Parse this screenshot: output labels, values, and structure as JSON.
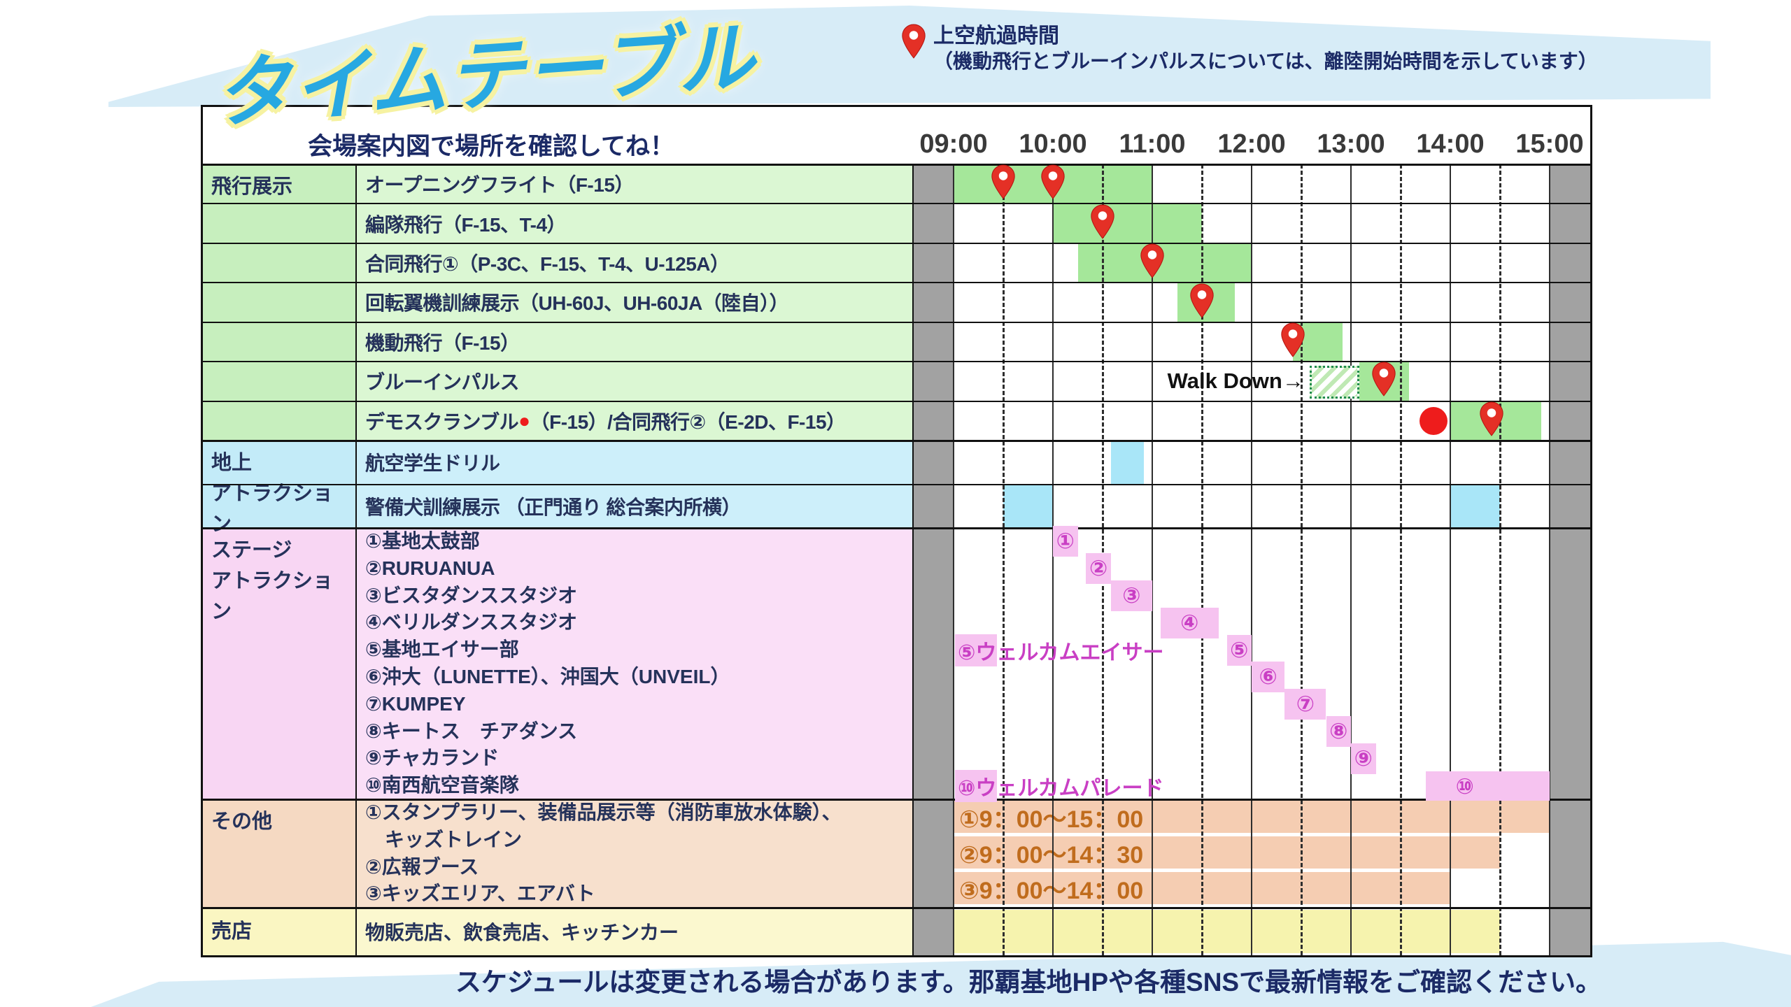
{
  "title": "タイムテーブル",
  "legend": {
    "line1": "上空航過時間",
    "line2": "（機動飛行とブルーインパルスについては、離陸開始時間を示しています）"
  },
  "header": {
    "note": "会場案内図で場所を確認してね！",
    "hours": [
      "09:00",
      "10:00",
      "11:00",
      "12:00",
      "13:00",
      "14:00",
      "15:00"
    ]
  },
  "footer": "スケジュールは変更される場合があります。那覇基地HPや各種SNSで最新情報をご確認ください。",
  "colors": {
    "title_blue": "#27a8e1",
    "title_halo": "#f6f2a2",
    "navy": "#1b2a66",
    "text_dark": "#25325a",
    "band_blue": "#d7ecf7",
    "gray_margin": "#a2a2a2",
    "grid": "#2e2e2e",
    "border_dark": "#111111",
    "hour_label": "#3a3a3a",
    "section_green_cat": "#c7efbe",
    "section_green_cell": "#dbf7d3",
    "bar_green": "#a5e79a",
    "section_blue_cat": "#c3ebf8",
    "section_blue_cell": "#cdeffa",
    "bar_cyan": "#a9e6f8",
    "section_pink_cat": "#f8d6f3",
    "section_pink_cell": "#fadff7",
    "marker_pink": "#f6c3f0",
    "stage_magenta": "#c93fc4",
    "section_peach_cat": "#f5d9c2",
    "section_peach_cell": "#f7e0cd",
    "bar_peach": "#f5cdb2",
    "other_orange": "#c06c1d",
    "section_yellow_cat": "#faf6c2",
    "section_yellow_cell": "#fbf8cf",
    "bar_yellow": "#f6f3ae",
    "pin_red": "#e43026",
    "dot_red": "#ee1c1c",
    "hatch_green": "#bfe9b4",
    "hatch_border": "#1f8a4d",
    "walkdown_text": "#111111"
  },
  "chart_data": {
    "type": "gantt",
    "time_axis": {
      "start": "09:00",
      "end": "15:00",
      "hour_labels": [
        "09:00",
        "10:00",
        "11:00",
        "12:00",
        "13:00",
        "14:00",
        "15:00"
      ],
      "solid_gridlines": "hours",
      "dashed_gridlines": "half-hours"
    },
    "pin_meaning": "上空航過時間（機動飛行・ブルーインパルスは離陸開始時間）",
    "sections": [
      {
        "id": "flight",
        "category": "飛行展示",
        "rows": [
          {
            "label_parts": [
              "オープニングフライト（F-15）"
            ],
            "bars": [
              [
                "09:00",
                "11:00"
              ]
            ],
            "pins": [
              "09:30",
              "10:00"
            ]
          },
          {
            "label_parts": [
              "編隊飛行（F-15、T-4）"
            ],
            "bars": [
              [
                "10:00",
                "11:30"
              ]
            ],
            "pins": [
              "10:30"
            ]
          },
          {
            "label_parts": [
              "合同飛行①（P-3C、F-15、T-4、U-125A）"
            ],
            "bars": [
              [
                "10:15",
                "12:00"
              ]
            ],
            "pins": [
              "11:00"
            ]
          },
          {
            "label_parts": [
              "回転翼機訓練展示（UH-60J、UH-60JA（陸自））"
            ],
            "bars": [
              [
                "11:15",
                "11:50"
              ]
            ],
            "pins": [
              "11:30"
            ]
          },
          {
            "label_parts": [
              "機動飛行（F-15）"
            ],
            "bars": [
              [
                "12:25",
                "12:55"
              ]
            ],
            "pins": [
              "12:25"
            ]
          },
          {
            "label_parts": [
              "ブルーインパルス"
            ],
            "bars": [
              [
                "13:05",
                "13:35"
              ]
            ],
            "pins": [
              "13:20"
            ],
            "hatch_box": [
              "12:35",
              "13:05"
            ],
            "annotation": {
              "text": "Walk Down→",
              "end": "12:35"
            }
          },
          {
            "label_parts": [
              "デモスクランブル",
              "●",
              "（F-15）/合同飛行②（E-2D、F-15）"
            ],
            "bars": [
              [
                "14:00",
                "14:55"
              ]
            ],
            "pins": [
              "14:25"
            ],
            "dot": "13:50"
          }
        ]
      },
      {
        "id": "ground",
        "category": "地上\nアトラクション",
        "rows": [
          {
            "label_parts": [
              "航空学生ドリル"
            ],
            "bars": [
              [
                "10:35",
                "10:55"
              ]
            ],
            "pins": []
          },
          {
            "label_parts": [
              "警備犬訓練展示 （正門通り 総合案内所横）"
            ],
            "bars": [
              [
                "09:30",
                "10:00"
              ],
              [
                "14:00",
                "14:30"
              ]
            ],
            "pins": []
          }
        ]
      },
      {
        "id": "stage",
        "category": "ステージ\nアトラクション",
        "list": [
          "①基地太鼓部",
          "②RURUANUA",
          "③ビスタダンススタジオ",
          "④ベリルダンススタジオ",
          "⑤基地エイサー部",
          "⑥沖大（LUNETTE）、沖国大（UNVEIL）",
          "⑦KUMPEY",
          "⑧キートス　チアダンス",
          "⑨チャカランド",
          "⑩南西航空音楽隊"
        ],
        "markers": [
          {
            "num": "①",
            "start": "10:00",
            "end": "10:15",
            "line": 1
          },
          {
            "num": "②",
            "start": "10:20",
            "end": "10:35",
            "line": 2
          },
          {
            "num": "③",
            "start": "10:35",
            "end": "11:00",
            "line": 3
          },
          {
            "num": "④",
            "start": "11:05",
            "end": "11:40",
            "line": 4
          },
          {
            "num": "⑤",
            "start": "11:45",
            "end": "12:00",
            "line": 5
          },
          {
            "num": "⑥",
            "start": "12:00",
            "end": "12:20",
            "line": 6
          },
          {
            "num": "⑦",
            "start": "12:20",
            "end": "12:45",
            "line": 7
          },
          {
            "num": "⑧",
            "start": "12:45",
            "end": "13:00",
            "line": 8
          },
          {
            "num": "⑨",
            "start": "13:00",
            "end": "13:15",
            "line": 9
          }
        ],
        "wide_bar": {
          "num": "⑩",
          "start": "13:45",
          "end": "15:00",
          "label_at": "14:10",
          "line": 10
        },
        "annotations": [
          {
            "num": "⑤",
            "text": "ウェルカムエイサー",
            "at": "09:00",
            "line": 5
          },
          {
            "num": "⑩",
            "text": "ウェルカムパレード",
            "at": "09:00",
            "line": 10
          }
        ]
      },
      {
        "id": "other",
        "category": "その他",
        "list": [
          "①スタンプラリー、装備品展示等（消防車放水体験）、",
          "　キッズトレイン",
          "②広報ブース",
          "③キッズエリア、エアバト"
        ],
        "bars": [
          {
            "label": "①9：00～15：00",
            "start": "09:00",
            "end": "15:00"
          },
          {
            "label": "②9：00～14：30",
            "start": "09:00",
            "end": "14:30"
          },
          {
            "label": "③9：00～14：00",
            "start": "09:00",
            "end": "14:00"
          }
        ]
      },
      {
        "id": "shop",
        "category": "売店",
        "list": [
          "物販売店、飲食売店、キッチンカー"
        ],
        "bars": [
          {
            "label": "",
            "start": "09:00",
            "end": "14:30"
          }
        ]
      }
    ]
  }
}
